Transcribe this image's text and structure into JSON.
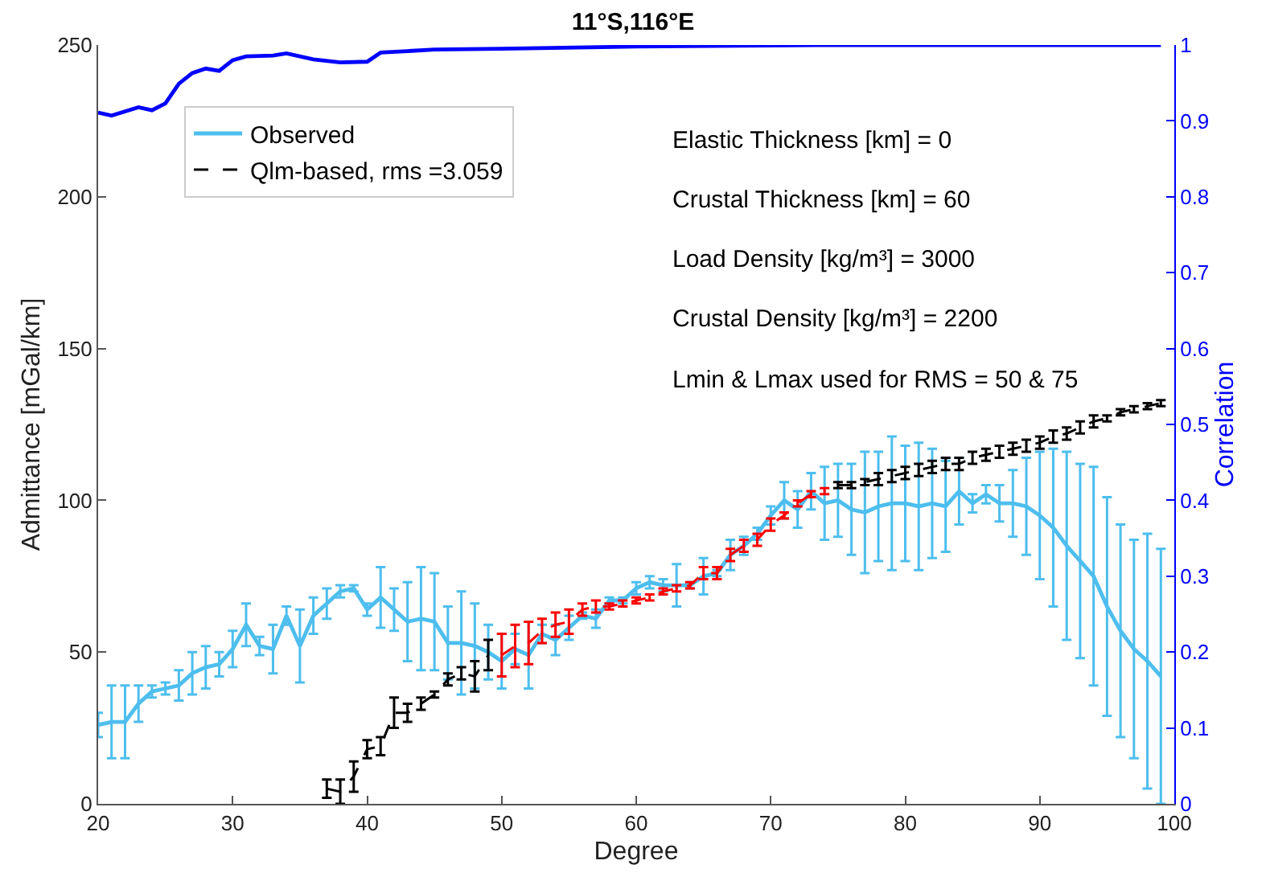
{
  "chart_data": {
    "type": "line",
    "title": "11°S,116°E",
    "xlabel": "Degree",
    "ylabel": "Admittance [mGal/km]",
    "y2label": "Correlation",
    "annotations": [
      "Elastic Thickness [km] = 0",
      "Crustal Thickness [km] = 60",
      "Load Density [kg/m³] = 3000",
      "Crustal Density [kg/m³] = 2200",
      "Lmin & Lmax used for RMS = 50 & 75"
    ],
    "x": [
      20,
      21,
      22,
      23,
      24,
      25,
      26,
      27,
      28,
      29,
      30,
      31,
      32,
      33,
      34,
      35,
      36,
      37,
      38,
      39,
      40,
      41,
      42,
      43,
      44,
      45,
      46,
      47,
      48,
      49,
      50,
      51,
      52,
      53,
      54,
      55,
      56,
      57,
      58,
      59,
      60,
      61,
      62,
      63,
      64,
      65,
      66,
      67,
      68,
      69,
      70,
      71,
      72,
      73,
      74,
      75,
      76,
      77,
      78,
      79,
      80,
      81,
      82,
      83,
      84,
      85,
      86,
      87,
      88,
      89,
      90,
      91,
      92,
      93,
      94,
      95,
      96,
      97,
      98,
      99
    ],
    "series": [
      {
        "name": "Observed",
        "color": "#4dbeee",
        "line_style": "solid",
        "values": [
          26,
          27,
          27,
          33,
          37,
          38,
          39,
          43,
          45,
          46,
          51,
          59,
          52,
          51,
          62,
          52,
          62,
          66,
          70,
          71,
          64,
          68,
          64,
          60,
          61,
          60,
          53,
          53,
          52,
          50,
          47,
          51,
          49,
          56,
          54,
          58,
          62,
          61,
          67,
          67,
          71,
          73,
          72,
          72,
          72,
          75,
          76,
          82,
          85,
          89,
          95,
          100,
          97,
          103,
          99,
          100,
          97,
          96,
          98,
          99,
          99,
          98,
          99,
          98,
          103,
          99,
          102,
          99,
          99,
          98,
          95,
          91,
          85,
          80,
          75,
          65,
          57,
          51,
          47,
          42
        ],
        "errors": [
          4,
          12,
          12,
          6,
          2,
          2,
          5,
          7,
          7,
          4,
          6,
          7,
          3,
          8,
          3,
          12,
          6,
          5,
          2,
          1,
          2,
          10,
          7,
          13,
          17,
          16,
          12,
          17,
          14,
          9,
          9,
          5,
          11,
          3,
          5,
          4,
          1,
          3,
          1,
          1,
          2,
          2,
          2,
          7,
          1,
          6,
          1,
          5,
          3,
          2,
          3,
          6,
          6,
          6,
          12,
          12,
          15,
          20,
          18,
          22,
          19,
          21,
          18,
          15,
          11,
          3,
          3,
          6,
          11,
          16,
          21,
          26,
          31,
          32,
          36,
          36,
          35,
          36,
          42,
          42
        ]
      },
      {
        "name": "Qlm-based, rms =3.059",
        "color": "#000000",
        "line_style": "dashed",
        "values": [
          null,
          null,
          null,
          null,
          null,
          null,
          null,
          null,
          null,
          null,
          null,
          null,
          null,
          null,
          null,
          null,
          null,
          5,
          4,
          9,
          18,
          19,
          30,
          30,
          33,
          36,
          41,
          43,
          42,
          49,
          null,
          null,
          null,
          null,
          null,
          null,
          null,
          null,
          null,
          null,
          null,
          null,
          null,
          null,
          null,
          null,
          null,
          null,
          null,
          null,
          null,
          null,
          null,
          null,
          null,
          105,
          105,
          106,
          107,
          108,
          109,
          110,
          111,
          112,
          112,
          114,
          115,
          116,
          117,
          118,
          119,
          121,
          122,
          124,
          126,
          127,
          129,
          130,
          131,
          132
        ],
        "errors": [
          null,
          null,
          null,
          null,
          null,
          null,
          null,
          null,
          null,
          null,
          null,
          null,
          null,
          null,
          null,
          null,
          null,
          3,
          4,
          5,
          3,
          3,
          5,
          3,
          2,
          1,
          2,
          2,
          5,
          5,
          null,
          null,
          null,
          null,
          null,
          null,
          null,
          null,
          null,
          null,
          null,
          null,
          null,
          null,
          null,
          null,
          null,
          null,
          null,
          null,
          null,
          null,
          null,
          null,
          null,
          1,
          1,
          1,
          2,
          2,
          2,
          2,
          2,
          2,
          2,
          2,
          2,
          2,
          2,
          2,
          2,
          2,
          2,
          2,
          2,
          1,
          1,
          1,
          1,
          1
        ]
      },
      {
        "color": "#ff0000",
        "line_style": "dashed",
        "x": [
          50,
          51,
          52,
          53,
          54,
          55,
          56,
          57,
          58,
          59,
          60,
          61,
          62,
          63,
          64,
          65,
          66,
          67,
          68,
          69,
          70,
          71,
          72,
          73,
          74
        ],
        "values": [
          49,
          52,
          53,
          57,
          59,
          60,
          64,
          65,
          65,
          66,
          67,
          68,
          70,
          71,
          72,
          76,
          76,
          82,
          85,
          87,
          92,
          95,
          99,
          102,
          103
        ],
        "errors": [
          7,
          7,
          7,
          4,
          4,
          4,
          2,
          2,
          1,
          1,
          1,
          1,
          1,
          1,
          1,
          2,
          2,
          2,
          2,
          2,
          2,
          1,
          1,
          1,
          1
        ]
      },
      {
        "color": "#0000ff",
        "axis": "y2",
        "line_style": "solid",
        "x": [
          20,
          21,
          23,
          24,
          25,
          26,
          27,
          28,
          29,
          30,
          31,
          33,
          34,
          36,
          38,
          40,
          41,
          43,
          45,
          50,
          60,
          75,
          99
        ],
        "values": [
          0.911,
          0.907,
          0.918,
          0.914,
          0.923,
          0.949,
          0.963,
          0.969,
          0.966,
          0.98,
          0.985,
          0.986,
          0.989,
          0.981,
          0.977,
          0.978,
          0.99,
          0.992,
          0.994,
          0.995,
          0.998,
          1,
          1
        ]
      }
    ],
    "xlim": [
      20,
      100
    ],
    "xticks": [
      20,
      30,
      40,
      50,
      60,
      70,
      80,
      90,
      100
    ],
    "ylim": [
      0,
      250
    ],
    "yticks": [
      0,
      50,
      100,
      150,
      200,
      250
    ],
    "y2lim": [
      0,
      1
    ],
    "y2ticks": [
      0,
      0.1,
      0.2,
      0.3,
      0.4,
      0.5,
      0.6,
      0.7,
      0.8,
      0.9,
      1
    ],
    "grid": false,
    "legend": "top left"
  }
}
